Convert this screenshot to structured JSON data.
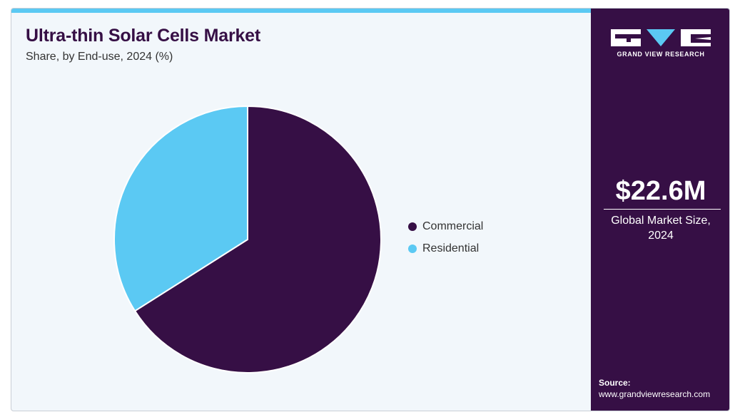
{
  "chart_data": {
    "type": "pie",
    "title": "Ultra-thin Solar Cells Market",
    "subtitle": "Share, by End-use, 2024 (%)",
    "categories": [
      "Commercial",
      "Residential"
    ],
    "values": [
      66,
      34
    ],
    "colors": [
      "#360f45",
      "#5bc9f3"
    ],
    "legend_position": "right"
  },
  "sidebar": {
    "brand": "GRAND VIEW RESEARCH",
    "metric_value": "$22.6M",
    "metric_label_line1": "Global Market Size,",
    "metric_label_line2": "2024",
    "source_label": "Source:",
    "source_url": "www.grandviewresearch.com"
  },
  "icons": {
    "logo": "grand-view-research-logo-icon"
  }
}
